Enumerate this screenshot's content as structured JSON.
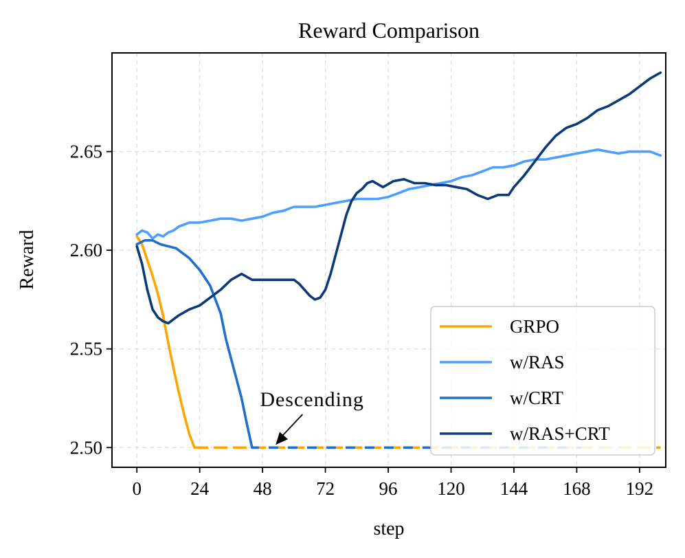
{
  "chart_data": {
    "type": "line",
    "title": "Reward Comparison",
    "xlabel": "step",
    "ylabel": "Reward",
    "xlim": [
      -9.5,
      202
    ],
    "ylim": [
      2.49,
      2.7
    ],
    "xticks": [
      0,
      24,
      48,
      72,
      96,
      120,
      144,
      168,
      192
    ],
    "yticks": [
      2.5,
      2.55,
      2.6,
      2.65
    ],
    "ytick_labels": [
      "2.50",
      "2.55",
      "2.60",
      "2.65"
    ],
    "grid": true,
    "legend_position": "lower-right",
    "floor_value": 2.5,
    "series": [
      {
        "name": "GRPO",
        "color": "#FFA500",
        "points": [
          [
            0,
            2.607
          ],
          [
            2,
            2.603
          ],
          [
            4,
            2.595
          ],
          [
            6,
            2.587
          ],
          [
            8,
            2.578
          ],
          [
            10,
            2.567
          ],
          [
            12,
            2.553
          ],
          [
            14,
            2.54
          ],
          [
            16,
            2.528
          ],
          [
            18,
            2.517
          ],
          [
            20,
            2.507
          ],
          [
            22,
            2.5
          ]
        ],
        "floor_until": 200
      },
      {
        "name": "w/RAS",
        "color": "#4D9FFF",
        "points": [
          [
            0,
            2.608
          ],
          [
            2,
            2.61
          ],
          [
            4,
            2.609
          ],
          [
            6,
            2.606
          ],
          [
            8,
            2.608
          ],
          [
            10,
            2.607
          ],
          [
            12,
            2.609
          ],
          [
            14,
            2.61
          ],
          [
            16,
            2.612
          ],
          [
            20,
            2.614
          ],
          [
            24,
            2.614
          ],
          [
            28,
            2.615
          ],
          [
            32,
            2.616
          ],
          [
            36,
            2.616
          ],
          [
            40,
            2.615
          ],
          [
            44,
            2.616
          ],
          [
            48,
            2.617
          ],
          [
            52,
            2.619
          ],
          [
            56,
            2.62
          ],
          [
            60,
            2.622
          ],
          [
            64,
            2.622
          ],
          [
            68,
            2.622
          ],
          [
            72,
            2.623
          ],
          [
            76,
            2.624
          ],
          [
            80,
            2.625
          ],
          [
            84,
            2.626
          ],
          [
            88,
            2.626
          ],
          [
            92,
            2.626
          ],
          [
            96,
            2.627
          ],
          [
            100,
            2.629
          ],
          [
            104,
            2.631
          ],
          [
            108,
            2.632
          ],
          [
            112,
            2.633
          ],
          [
            116,
            2.634
          ],
          [
            120,
            2.635
          ],
          [
            124,
            2.637
          ],
          [
            128,
            2.638
          ],
          [
            132,
            2.64
          ],
          [
            136,
            2.642
          ],
          [
            140,
            2.642
          ],
          [
            144,
            2.643
          ],
          [
            148,
            2.645
          ],
          [
            152,
            2.646
          ],
          [
            156,
            2.646
          ],
          [
            160,
            2.647
          ],
          [
            164,
            2.648
          ],
          [
            168,
            2.649
          ],
          [
            172,
            2.65
          ],
          [
            176,
            2.651
          ],
          [
            180,
            2.65
          ],
          [
            184,
            2.649
          ],
          [
            188,
            2.65
          ],
          [
            192,
            2.65
          ],
          [
            196,
            2.65
          ],
          [
            200,
            2.648
          ]
        ]
      },
      {
        "name": "w/CRT",
        "color": "#1F6FCC",
        "points": [
          [
            0,
            2.603
          ],
          [
            3,
            2.605
          ],
          [
            6,
            2.605
          ],
          [
            9,
            2.603
          ],
          [
            12,
            2.602
          ],
          [
            15,
            2.601
          ],
          [
            18,
            2.598
          ],
          [
            20,
            2.596
          ],
          [
            22,
            2.593
          ],
          [
            24,
            2.59
          ],
          [
            26,
            2.586
          ],
          [
            28,
            2.582
          ],
          [
            30,
            2.575
          ],
          [
            32,
            2.568
          ],
          [
            34,
            2.555
          ],
          [
            36,
            2.545
          ],
          [
            38,
            2.535
          ],
          [
            40,
            2.525
          ],
          [
            42,
            2.512
          ],
          [
            44,
            2.5
          ]
        ],
        "floor_until": 170
      },
      {
        "name": "w/RAS+CRT",
        "color": "#0B3A78",
        "points": [
          [
            0,
            2.602
          ],
          [
            2,
            2.593
          ],
          [
            4,
            2.58
          ],
          [
            6,
            2.57
          ],
          [
            8,
            2.566
          ],
          [
            10,
            2.564
          ],
          [
            12,
            2.563
          ],
          [
            14,
            2.565
          ],
          [
            16,
            2.567
          ],
          [
            20,
            2.57
          ],
          [
            24,
            2.572
          ],
          [
            28,
            2.576
          ],
          [
            32,
            2.58
          ],
          [
            36,
            2.585
          ],
          [
            40,
            2.588
          ],
          [
            44,
            2.585
          ],
          [
            48,
            2.585
          ],
          [
            52,
            2.585
          ],
          [
            56,
            2.585
          ],
          [
            60,
            2.585
          ],
          [
            62,
            2.583
          ],
          [
            64,
            2.58
          ],
          [
            66,
            2.577
          ],
          [
            68,
            2.575
          ],
          [
            70,
            2.576
          ],
          [
            72,
            2.58
          ],
          [
            74,
            2.588
          ],
          [
            76,
            2.598
          ],
          [
            78,
            2.608
          ],
          [
            80,
            2.618
          ],
          [
            82,
            2.625
          ],
          [
            84,
            2.629
          ],
          [
            86,
            2.631
          ],
          [
            88,
            2.634
          ],
          [
            90,
            2.635
          ],
          [
            94,
            2.632
          ],
          [
            98,
            2.635
          ],
          [
            102,
            2.636
          ],
          [
            106,
            2.634
          ],
          [
            110,
            2.634
          ],
          [
            114,
            2.633
          ],
          [
            118,
            2.633
          ],
          [
            122,
            2.632
          ],
          [
            126,
            2.631
          ],
          [
            130,
            2.628
          ],
          [
            134,
            2.626
          ],
          [
            138,
            2.628
          ],
          [
            142,
            2.628
          ],
          [
            144,
            2.632
          ],
          [
            148,
            2.638
          ],
          [
            152,
            2.645
          ],
          [
            156,
            2.652
          ],
          [
            160,
            2.658
          ],
          [
            164,
            2.662
          ],
          [
            168,
            2.664
          ],
          [
            172,
            2.667
          ],
          [
            176,
            2.671
          ],
          [
            180,
            2.673
          ],
          [
            184,
            2.676
          ],
          [
            188,
            2.679
          ],
          [
            192,
            2.683
          ],
          [
            196,
            2.687
          ],
          [
            200,
            2.69
          ]
        ]
      }
    ],
    "annotation": {
      "text": "Descending",
      "text_at": [
        47,
        2.521
      ],
      "arrow_to": [
        53,
        2.5
      ]
    }
  }
}
